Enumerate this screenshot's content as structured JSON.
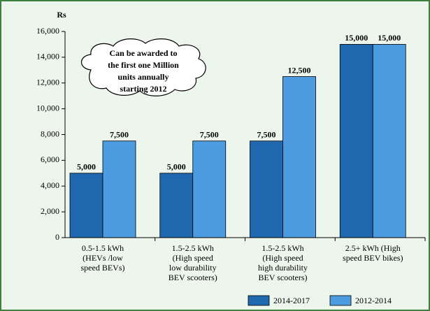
{
  "chart_data": {
    "type": "bar",
    "y_label": "Rs",
    "annotation": [
      "Can be awarded to",
      "the first one Million",
      "units annually",
      "starting 2012"
    ],
    "categories": [
      [
        "0.5-1.5 kWh",
        "(HEVs /low",
        "speed BEVs)"
      ],
      [
        "1.5-2.5 kWh",
        "(High speed",
        "low durability",
        "BEV scooters)"
      ],
      [
        "1.5-2.5 kWh",
        "(High speed",
        "high durability",
        "BEV scooters)"
      ],
      [
        "2.5+ kWh (High",
        "speed BEV bikes)"
      ]
    ],
    "series": [
      {
        "name": "2014-2017",
        "color": "#1f68b0",
        "values": [
          5000,
          5000,
          7500,
          15000
        ],
        "value_labels": [
          "5,000",
          "5,000",
          "7,500",
          "15,000"
        ]
      },
      {
        "name": "2012-2014",
        "color": "#4d9be0",
        "values": [
          7500,
          7500,
          12500,
          15000
        ],
        "value_labels": [
          "7,500",
          "7,500",
          "12,500",
          "15,000"
        ]
      }
    ],
    "ylim": [
      0,
      16000
    ],
    "yticks": [
      0,
      {
        "value": 2000,
        "label": "2,000"
      },
      {
        "value": 4000,
        "label": "4,000"
      },
      {
        "value": 6000,
        "label": "6,000"
      },
      {
        "value": 8000,
        "label": "8,000"
      },
      {
        "value": 10000,
        "label": "10,000"
      },
      {
        "value": 12000,
        "label": "12,000"
      },
      {
        "value": 14000,
        "label": "14,000"
      },
      {
        "value": 16000,
        "label": "16,000"
      }
    ],
    "legend": "bottom-right"
  }
}
